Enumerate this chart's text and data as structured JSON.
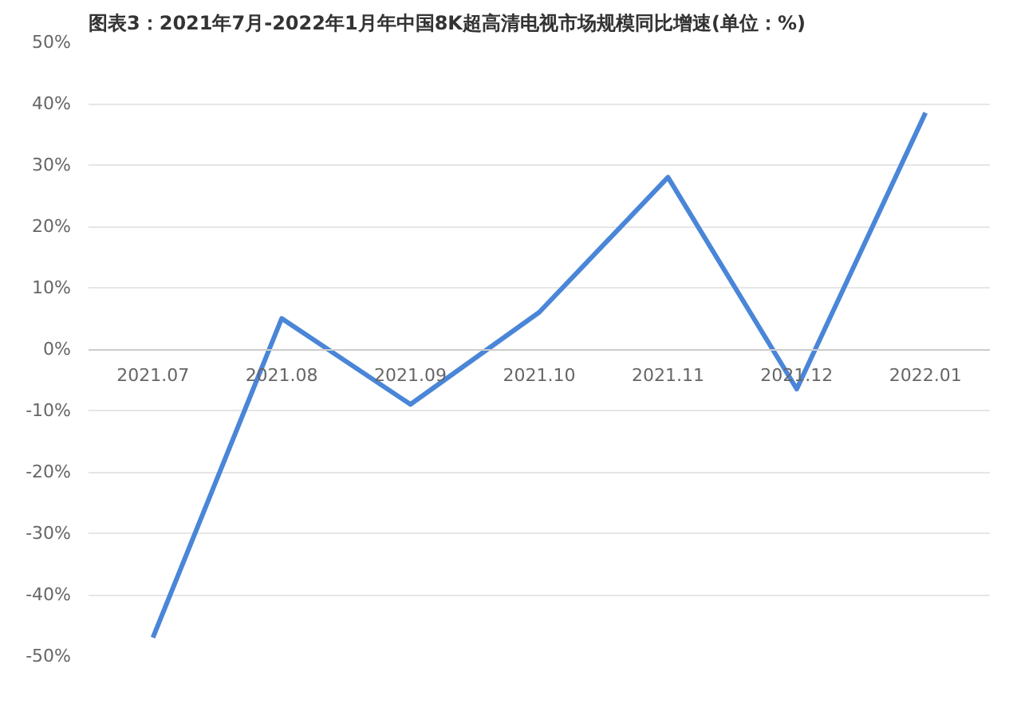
{
  "chart_data": {
    "type": "line",
    "title": "图表3：2021年7月-2022年1月年中国8K超高清电视市场规模同比增速(单位：%)",
    "categories": [
      "2021.07",
      "2021.08",
      "2021.09",
      "2021.10",
      "2021.11",
      "2021.12",
      "2022.01"
    ],
    "series": [
      {
        "color": "#4a86d8",
        "values": [
          -47,
          5,
          -9,
          6,
          28,
          -6.5,
          38.5
        ]
      }
    ],
    "ylim": [
      -50,
      50
    ],
    "yticks": [
      {
        "value": -50,
        "label": "-50%"
      },
      {
        "value": -40,
        "label": "-40%"
      },
      {
        "value": -30,
        "label": "-30%"
      },
      {
        "value": -20,
        "label": "-20%"
      },
      {
        "value": -10,
        "label": "-10%"
      },
      {
        "value": 0,
        "label": "0%"
      },
      {
        "value": 10,
        "label": "10%"
      },
      {
        "value": 20,
        "label": "20%"
      },
      {
        "value": 30,
        "label": "30%"
      },
      {
        "value": 40,
        "label": "40%"
      },
      {
        "value": 50,
        "label": "50%"
      }
    ],
    "grid": "y",
    "marker": "none",
    "line_style": "solid"
  }
}
